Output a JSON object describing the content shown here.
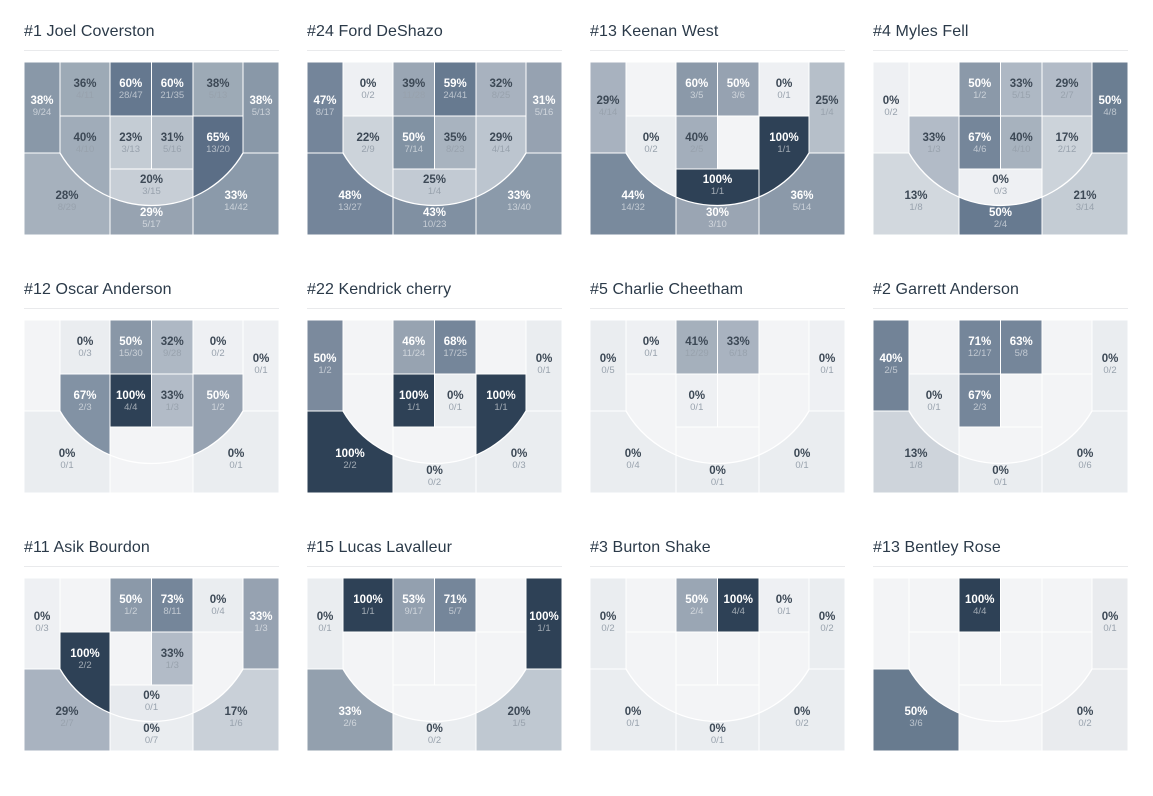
{
  "page": {
    "background": "#ffffff"
  },
  "styles": {
    "title_color": "#2b3a49",
    "divider_color": "#e9eaec",
    "grid_line_color": "#ffffff",
    "empty_zone_color": "#f3f4f6",
    "pct_on_light": "#3d4956",
    "frac_on_light": "#98a2ad",
    "pct_on_dark": "#ffffff",
    "frac_on_dark": "rgba(255,255,255,0.55)",
    "max_scale_color": "#2e4156"
  },
  "chart_data": [
    {
      "type": "heatmap",
      "title": "#1 Joel Coverston",
      "zones": {
        "corner-left": {
          "pct": "38%",
          "made_att": "9/24",
          "color": "#8998a8",
          "text": "white"
        },
        "wing-left": {
          "pct": "36%",
          "made_att": "4/11",
          "color": "#9daab6",
          "text": "dark"
        },
        "top-key-left": {
          "pct": "60%",
          "made_att": "28/47",
          "color": "#65788f",
          "text": "white"
        },
        "top-key-right": {
          "pct": "60%",
          "made_att": "21/35",
          "color": "#65788f",
          "text": "white"
        },
        "wing-right": {
          "pct": "38%",
          "made_att": "5/13",
          "color": "#9daab6",
          "text": "dark"
        },
        "corner-right": {
          "pct": "38%",
          "made_att": "5/13",
          "color": "#8998a8",
          "text": "white"
        },
        "elbow-left": {
          "pct": "40%",
          "made_att": "4/10",
          "color": "#a0acb9",
          "text": "dark"
        },
        "paint-left": {
          "pct": "23%",
          "made_att": "3/13",
          "color": "#c4ccd4",
          "text": "dark"
        },
        "paint-right": {
          "pct": "31%",
          "made_att": "5/16",
          "color": "#b6bfc9",
          "text": "dark"
        },
        "elbow-right": {
          "pct": "65%",
          "made_att": "13/20",
          "color": "#5b6e86",
          "text": "white"
        },
        "baseline-left": {
          "pct": "28%",
          "made_att": "8/29",
          "color": "#a6b1bd",
          "text": "dark"
        },
        "key-center": {
          "pct": "20%",
          "made_att": "3/15",
          "color": "#c7ced6",
          "text": "dark"
        },
        "baseline-center": {
          "pct": "29%",
          "made_att": "5/17",
          "color": "#97a3b1",
          "text": "white"
        },
        "baseline-right": {
          "pct": "33%",
          "made_att": "14/42",
          "color": "#8b9aaa",
          "text": "white"
        }
      }
    },
    {
      "type": "heatmap",
      "title": "#24 Ford DeShazo",
      "zones": {
        "corner-left": {
          "pct": "47%",
          "made_att": "8/17",
          "color": "#74859a",
          "text": "white"
        },
        "wing-left": {
          "pct": "0%",
          "made_att": "0/2",
          "color": "#eef0f3",
          "text": "dark"
        },
        "top-key-left": {
          "pct": "39%",
          "made_att": "11/28",
          "color": "#9aa6b4",
          "text": "dark"
        },
        "top-key-right": {
          "pct": "59%",
          "made_att": "24/41",
          "color": "#677a90",
          "text": "white"
        },
        "wing-right": {
          "pct": "32%",
          "made_att": "8/25",
          "color": "#a8b2bf",
          "text": "dark"
        },
        "corner-right": {
          "pct": "31%",
          "made_att": "5/16",
          "color": "#96a2b1",
          "text": "white"
        },
        "elbow-left": {
          "pct": "22%",
          "made_att": "2/9",
          "color": "#ccd3da",
          "text": "dark"
        },
        "paint-left": {
          "pct": "50%",
          "made_att": "7/14",
          "color": "#8192a3",
          "text": "white"
        },
        "paint-right": {
          "pct": "35%",
          "made_att": "8/23",
          "color": "#a8b3bf",
          "text": "dark"
        },
        "elbow-right": {
          "pct": "29%",
          "made_att": "4/14",
          "color": "#bcc5cf",
          "text": "dark"
        },
        "baseline-left": {
          "pct": "48%",
          "made_att": "13/27",
          "color": "#74859a",
          "text": "white"
        },
        "key-center": {
          "pct": "25%",
          "made_att": "1/4",
          "color": "#c2cad3",
          "text": "dark"
        },
        "baseline-center": {
          "pct": "43%",
          "made_att": "10/23",
          "color": "#8090a2",
          "text": "white"
        },
        "baseline-right": {
          "pct": "33%",
          "made_att": "13/40",
          "color": "#8b9aaa",
          "text": "white"
        }
      }
    },
    {
      "type": "heatmap",
      "title": "#13 Keenan West",
      "zones": {
        "corner-left": {
          "pct": "29%",
          "made_att": "4/14",
          "color": "#a8b2bf",
          "text": "dark"
        },
        "top-key-left": {
          "pct": "60%",
          "made_att": "3/5",
          "color": "#8b99a9",
          "text": "white"
        },
        "top-key-right": {
          "pct": "50%",
          "made_att": "3/6",
          "color": "#96a2b1",
          "text": "white"
        },
        "wing-right": {
          "pct": "0%",
          "made_att": "0/1",
          "color": "#eef0f3",
          "text": "dark"
        },
        "corner-right": {
          "pct": "25%",
          "made_att": "1/4",
          "color": "#b6bfc9",
          "text": "dark"
        },
        "elbow-left": {
          "pct": "0%",
          "made_att": "0/2",
          "color": "#eaedf0",
          "text": "dark"
        },
        "paint-left": {
          "pct": "40%",
          "made_att": "2/5",
          "color": "#a3aebb",
          "text": "dark"
        },
        "elbow-right": {
          "pct": "100%",
          "made_att": "1/1",
          "color": "#2e4156",
          "text": "white"
        },
        "baseline-left": {
          "pct": "44%",
          "made_att": "14/32",
          "color": "#798a9d",
          "text": "white"
        },
        "key-center": {
          "pct": "100%",
          "made_att": "1/1",
          "color": "#2e4156",
          "text": "white"
        },
        "baseline-center": {
          "pct": "30%",
          "made_att": "3/10",
          "color": "#9aa5b3",
          "text": "white"
        },
        "baseline-right": {
          "pct": "36%",
          "made_att": "5/14",
          "color": "#8b99a9",
          "text": "white"
        }
      }
    },
    {
      "type": "heatmap",
      "title": "#4 Myles Fell",
      "zones": {
        "corner-left": {
          "pct": "0%",
          "made_att": "0/2",
          "color": "#eef0f3",
          "text": "dark"
        },
        "top-key-left": {
          "pct": "50%",
          "made_att": "1/2",
          "color": "#8b99a9",
          "text": "white"
        },
        "top-key-right": {
          "pct": "33%",
          "made_att": "5/15",
          "color": "#aeb8c4",
          "text": "dark"
        },
        "wing-right": {
          "pct": "29%",
          "made_att": "2/7",
          "color": "#b2bbc7",
          "text": "dark"
        },
        "corner-right": {
          "pct": "50%",
          "made_att": "4/8",
          "color": "#6b7e92",
          "text": "white"
        },
        "elbow-left": {
          "pct": "33%",
          "made_att": "1/3",
          "color": "#b2bbc7",
          "text": "dark"
        },
        "paint-left": {
          "pct": "67%",
          "made_att": "4/6",
          "color": "#75869a",
          "text": "white"
        },
        "paint-right": {
          "pct": "40%",
          "made_att": "4/10",
          "color": "#a7b2be",
          "text": "dark"
        },
        "elbow-right": {
          "pct": "17%",
          "made_att": "2/12",
          "color": "#ccd3da",
          "text": "dark"
        },
        "baseline-left": {
          "pct": "13%",
          "made_att": "1/8",
          "color": "#d2d8de",
          "text": "dark"
        },
        "key-center": {
          "pct": "0%",
          "made_att": "0/3",
          "color": "#eef0f3",
          "text": "dark"
        },
        "baseline-center": {
          "pct": "50%",
          "made_att": "2/4",
          "color": "#677a90",
          "text": "white"
        },
        "baseline-right": {
          "pct": "21%",
          "made_att": "3/14",
          "color": "#c4ccd4",
          "text": "dark"
        }
      }
    },
    {
      "type": "heatmap",
      "title": "#12 Oscar Anderson",
      "zones": {
        "wing-left": {
          "pct": "0%",
          "made_att": "0/3",
          "color": "#eaedf0",
          "text": "dark"
        },
        "top-key-left": {
          "pct": "50%",
          "made_att": "15/30",
          "color": "#8997a7",
          "text": "white"
        },
        "top-key-right": {
          "pct": "32%",
          "made_att": "9/28",
          "color": "#aeb8c4",
          "text": "dark"
        },
        "wing-right": {
          "pct": "0%",
          "made_att": "0/2",
          "color": "#eef0f3",
          "text": "dark"
        },
        "corner-right": {
          "pct": "0%",
          "made_att": "0/1",
          "color": "#eef0f3",
          "text": "dark"
        },
        "elbow-left": {
          "pct": "67%",
          "made_att": "2/3",
          "color": "#8292a4",
          "text": "white"
        },
        "paint-left": {
          "pct": "100%",
          "made_att": "4/4",
          "color": "#2e4156",
          "text": "white"
        },
        "paint-right": {
          "pct": "33%",
          "made_att": "1/3",
          "color": "#b2bbc7",
          "text": "dark"
        },
        "elbow-right": {
          "pct": "50%",
          "made_att": "1/2",
          "color": "#96a2b1",
          "text": "white"
        },
        "baseline-left": {
          "pct": "0%",
          "made_att": "0/1",
          "color": "#eaedf0",
          "text": "dark"
        },
        "baseline-right": {
          "pct": "0%",
          "made_att": "0/1",
          "color": "#eaedf0",
          "text": "dark"
        }
      }
    },
    {
      "type": "heatmap",
      "title": "#22 Kendrick cherry",
      "zones": {
        "corner-left": {
          "pct": "50%",
          "made_att": "1/2",
          "color": "#7b8a9d",
          "text": "white"
        },
        "top-key-left": {
          "pct": "46%",
          "made_att": "11/24",
          "color": "#97a3b1",
          "text": "white"
        },
        "top-key-right": {
          "pct": "68%",
          "made_att": "17/25",
          "color": "#75869a",
          "text": "white"
        },
        "corner-right": {
          "pct": "0%",
          "made_att": "0/1",
          "color": "#eaedf0",
          "text": "dark"
        },
        "paint-left": {
          "pct": "100%",
          "made_att": "1/1",
          "color": "#2e4156",
          "text": "white"
        },
        "paint-right": {
          "pct": "0%",
          "made_att": "0/1",
          "color": "#eaedf0",
          "text": "dark"
        },
        "elbow-right": {
          "pct": "100%",
          "made_att": "1/1",
          "color": "#2e4156",
          "text": "white"
        },
        "baseline-left": {
          "pct": "100%",
          "made_att": "2/2",
          "color": "#2e4156",
          "text": "white"
        },
        "baseline-center": {
          "pct": "0%",
          "made_att": "0/2",
          "color": "#eaedf0",
          "text": "dark"
        },
        "baseline-right": {
          "pct": "0%",
          "made_att": "0/3",
          "color": "#eaedf0",
          "text": "dark"
        }
      }
    },
    {
      "type": "heatmap",
      "title": "#5 Charlie Cheetham",
      "zones": {
        "corner-left": {
          "pct": "0%",
          "made_att": "0/5",
          "color": "#eaedf0",
          "text": "dark"
        },
        "wing-left": {
          "pct": "0%",
          "made_att": "0/1",
          "color": "#eef0f3",
          "text": "dark"
        },
        "top-key-left": {
          "pct": "41%",
          "made_att": "12/29",
          "color": "#a5b0bc",
          "text": "dark"
        },
        "top-key-right": {
          "pct": "33%",
          "made_att": "6/18",
          "color": "#a9b3c0",
          "text": "dark"
        },
        "corner-right": {
          "pct": "0%",
          "made_att": "0/1",
          "color": "#eef0f3",
          "text": "dark"
        },
        "paint-left": {
          "pct": "0%",
          "made_att": "0/1",
          "color": "#eef0f3",
          "text": "dark"
        },
        "baseline-left": {
          "pct": "0%",
          "made_att": "0/4",
          "color": "#eaedf0",
          "text": "dark"
        },
        "baseline-center": {
          "pct": "0%",
          "made_att": "0/1",
          "color": "#eaedf0",
          "text": "dark"
        },
        "baseline-right": {
          "pct": "0%",
          "made_att": "0/1",
          "color": "#eaedf0",
          "text": "dark"
        }
      }
    },
    {
      "type": "heatmap",
      "title": "#2 Garrett Anderson",
      "zones": {
        "corner-left": {
          "pct": "40%",
          "made_att": "2/5",
          "color": "#728397",
          "text": "white"
        },
        "top-key-left": {
          "pct": "71%",
          "made_att": "12/17",
          "color": "#75869a",
          "text": "white"
        },
        "top-key-right": {
          "pct": "63%",
          "made_att": "5/8",
          "color": "#75869a",
          "text": "white"
        },
        "corner-right": {
          "pct": "0%",
          "made_att": "0/2",
          "color": "#eaedf0",
          "text": "dark"
        },
        "elbow-left": {
          "pct": "0%",
          "made_att": "0/1",
          "color": "#eaedf0",
          "text": "dark"
        },
        "paint-left": {
          "pct": "67%",
          "made_att": "2/3",
          "color": "#75869a",
          "text": "white"
        },
        "baseline-left": {
          "pct": "13%",
          "made_att": "1/8",
          "color": "#ced4db",
          "text": "dark"
        },
        "baseline-center": {
          "pct": "0%",
          "made_att": "0/1",
          "color": "#eaedf0",
          "text": "dark"
        },
        "baseline-right": {
          "pct": "0%",
          "made_att": "0/6",
          "color": "#eaedf0",
          "text": "dark"
        }
      }
    },
    {
      "type": "heatmap",
      "title": "#11 Asik Bourdon",
      "zones": {
        "corner-left": {
          "pct": "0%",
          "made_att": "0/3",
          "color": "#eef0f3",
          "text": "dark"
        },
        "top-key-left": {
          "pct": "50%",
          "made_att": "1/2",
          "color": "#8b99a9",
          "text": "white"
        },
        "top-key-right": {
          "pct": "73%",
          "made_att": "8/11",
          "color": "#75869a",
          "text": "white"
        },
        "wing-right": {
          "pct": "0%",
          "made_att": "0/4",
          "color": "#eaedf0",
          "text": "dark"
        },
        "corner-right": {
          "pct": "33%",
          "made_att": "1/3",
          "color": "#96a2b1",
          "text": "white"
        },
        "elbow-left": {
          "pct": "100%",
          "made_att": "2/2",
          "color": "#2e4156",
          "text": "white"
        },
        "paint-right": {
          "pct": "33%",
          "made_att": "1/3",
          "color": "#b2bbc7",
          "text": "dark"
        },
        "baseline-left": {
          "pct": "29%",
          "made_att": "2/7",
          "color": "#a9b3c0",
          "text": "dark"
        },
        "key-center": {
          "pct": "0%",
          "made_att": "0/1",
          "color": "#e7eaee",
          "text": "dark"
        },
        "baseline-center": {
          "pct": "0%",
          "made_att": "0/7",
          "color": "#eaedf0",
          "text": "dark"
        },
        "baseline-right": {
          "pct": "17%",
          "made_att": "1/6",
          "color": "#c9d0d8",
          "text": "dark"
        }
      }
    },
    {
      "type": "heatmap",
      "title": "#15 Lucas Lavalleur",
      "zones": {
        "corner-left": {
          "pct": "0%",
          "made_att": "0/1",
          "color": "#eaedf0",
          "text": "dark"
        },
        "wing-left": {
          "pct": "100%",
          "made_att": "1/1",
          "color": "#2e4156",
          "text": "white"
        },
        "top-key-left": {
          "pct": "53%",
          "made_att": "9/17",
          "color": "#93a0af",
          "text": "white"
        },
        "top-key-right": {
          "pct": "71%",
          "made_att": "5/7",
          "color": "#75869a",
          "text": "white"
        },
        "corner-right": {
          "pct": "100%",
          "made_att": "1/1",
          "color": "#2e4156",
          "text": "white"
        },
        "baseline-left": {
          "pct": "33%",
          "made_att": "2/6",
          "color": "#93a0ae",
          "text": "white"
        },
        "baseline-center": {
          "pct": "0%",
          "made_att": "0/2",
          "color": "#eaedf0",
          "text": "dark"
        },
        "baseline-right": {
          "pct": "20%",
          "made_att": "1/5",
          "color": "#bfc8d1",
          "text": "dark"
        }
      }
    },
    {
      "type": "heatmap",
      "title": "#3 Burton Shake",
      "zones": {
        "corner-left": {
          "pct": "0%",
          "made_att": "0/2",
          "color": "#eaedf0",
          "text": "dark"
        },
        "top-key-left": {
          "pct": "50%",
          "made_att": "2/4",
          "color": "#9aa6b4",
          "text": "white"
        },
        "top-key-right": {
          "pct": "100%",
          "made_att": "4/4",
          "color": "#2e4156",
          "text": "white"
        },
        "wing-right": {
          "pct": "0%",
          "made_att": "0/1",
          "color": "#eef0f3",
          "text": "dark"
        },
        "corner-right": {
          "pct": "0%",
          "made_att": "0/2",
          "color": "#eaedf0",
          "text": "dark"
        },
        "baseline-left": {
          "pct": "0%",
          "made_att": "0/1",
          "color": "#eaedf0",
          "text": "dark"
        },
        "baseline-center": {
          "pct": "0%",
          "made_att": "0/1",
          "color": "#eaedf0",
          "text": "dark"
        },
        "baseline-right": {
          "pct": "0%",
          "made_att": "0/2",
          "color": "#eaedf0",
          "text": "dark"
        }
      }
    },
    {
      "type": "heatmap",
      "title": "#13 Bentley Rose",
      "zones": {
        "top-key-left": {
          "pct": "100%",
          "made_att": "4/4",
          "color": "#2e4156",
          "text": "white"
        },
        "corner-right": {
          "pct": "0%",
          "made_att": "0/1",
          "color": "#e9ebee",
          "text": "dark"
        },
        "baseline-left": {
          "pct": "50%",
          "made_att": "3/6",
          "color": "#687b8f",
          "text": "white"
        },
        "baseline-right": {
          "pct": "0%",
          "made_att": "0/2",
          "color": "#e9ebee",
          "text": "dark"
        }
      }
    }
  ]
}
